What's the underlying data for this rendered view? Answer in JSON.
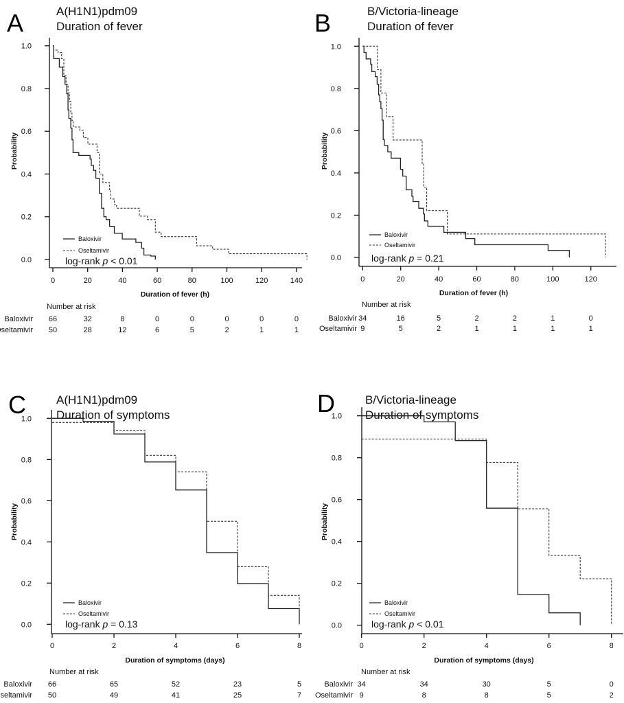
{
  "chart_data": [
    {
      "type": "line",
      "panel_letter": "A",
      "title": [
        "A(H1N1)pdm09",
        "Duration of fever"
      ],
      "xlabel": "Duration of fever (h)",
      "ylabel": "Probability",
      "xlim": [
        0,
        146
      ],
      "ylim": [
        0,
        1
      ],
      "xticks": [
        "0",
        "20",
        "40",
        "60",
        "80",
        "100",
        "120",
        "140"
      ],
      "xtick_values": [
        0,
        20,
        40,
        60,
        80,
        100,
        120,
        140
      ],
      "yticks": [
        "0.0",
        "0.2",
        "0.4",
        "0.6",
        "0.8",
        "1.0"
      ],
      "ytick_values": [
        0,
        0.2,
        0.4,
        0.6,
        0.8,
        1.0
      ],
      "legend": [
        "Baloxivir",
        "Oseltamivir"
      ],
      "legend_placement": "bottom-left",
      "logrank": {
        "prefix": "log-rank ",
        "p": "p",
        "suffix": " < 0.01"
      },
      "risk_table": {
        "title": "Number at risk",
        "rows": [
          {
            "label": "Baloxivir",
            "values": [
              "66",
              "32",
              "8",
              "0",
              "0",
              "0",
              "0",
              "0"
            ]
          },
          {
            "label": "Oseltamivir",
            "values": [
              "50",
              "28",
              "12",
              "6",
              "5",
              "2",
              "1",
              "1"
            ]
          }
        ]
      },
      "series": [
        {
          "name": "Baloxivir",
          "style": "solid",
          "steps": [
            [
              0,
              1
            ],
            [
              0.5,
              0.94
            ],
            [
              3.7,
              0.9
            ],
            [
              5.7,
              0.856
            ],
            [
              7,
              0.82
            ],
            [
              8,
              0.775
            ],
            [
              8.7,
              0.7
            ],
            [
              9.2,
              0.66
            ],
            [
              10.3,
              0.615
            ],
            [
              11,
              0.56
            ],
            [
              11.6,
              0.5
            ],
            [
              14.9,
              0.487
            ],
            [
              21.4,
              0.47
            ],
            [
              22.1,
              0.44
            ],
            [
              23.4,
              0.417
            ],
            [
              24.7,
              0.38
            ],
            [
              26.7,
              0.31
            ],
            [
              28,
              0.24
            ],
            [
              29.3,
              0.2
            ],
            [
              30.6,
              0.187
            ],
            [
              32.6,
              0.155
            ],
            [
              35.3,
              0.123
            ],
            [
              39.9,
              0.096
            ],
            [
              47.7,
              0.08
            ],
            [
              51,
              0.053
            ],
            [
              52.3,
              0.021
            ],
            [
              56.3,
              0.016
            ],
            [
              58.9,
              0
            ]
          ]
        },
        {
          "name": "Oseltamivir",
          "style": "dashed",
          "steps": [
            [
              0,
              1
            ],
            [
              0.5,
              0.98
            ],
            [
              3,
              0.968
            ],
            [
              5,
              0.94
            ],
            [
              6.3,
              0.86
            ],
            [
              7.6,
              0.82
            ],
            [
              8.7,
              0.78
            ],
            [
              9.6,
              0.74
            ],
            [
              10.3,
              0.685
            ],
            [
              11,
              0.65
            ],
            [
              11.8,
              0.62
            ],
            [
              15.5,
              0.604
            ],
            [
              17.5,
              0.57
            ],
            [
              20.1,
              0.54
            ],
            [
              25.4,
              0.5
            ],
            [
              26.7,
              0.4
            ],
            [
              28.7,
              0.36
            ],
            [
              32.6,
              0.326
            ],
            [
              33.3,
              0.283
            ],
            [
              35.3,
              0.257
            ],
            [
              36.6,
              0.24
            ],
            [
              49.7,
              0.203
            ],
            [
              54.3,
              0.187
            ],
            [
              58.9,
              0.128
            ],
            [
              62.2,
              0.107
            ],
            [
              82.6,
              0.064
            ],
            [
              91.8,
              0.048
            ],
            [
              101,
              0.027
            ],
            [
              146,
              0
            ]
          ]
        }
      ]
    },
    {
      "type": "line",
      "panel_letter": "B",
      "title": [
        "B/Victoria-lineage",
        "Duration of fever"
      ],
      "xlabel": "Duration of fever (h)",
      "ylabel": "Probability",
      "xlim": [
        0,
        128
      ],
      "ylim": [
        0,
        1
      ],
      "xticks": [
        "0",
        "20",
        "40",
        "60",
        "80",
        "100",
        "120"
      ],
      "xtick_values": [
        0,
        20,
        40,
        60,
        80,
        100,
        120
      ],
      "yticks": [
        "0.0",
        "0.2",
        "0.4",
        "0.6",
        "0.8",
        "1.0"
      ],
      "ytick_values": [
        0,
        0.2,
        0.4,
        0.6,
        0.8,
        1.0
      ],
      "legend": [
        "Baloxivir",
        "Oseltamivir"
      ],
      "legend_placement": "bottom-left",
      "logrank": {
        "prefix": "log-rank ",
        "p": "p",
        "suffix": " = 0.21"
      },
      "risk_table": {
        "title": "Number at risk",
        "rows": [
          {
            "label": "Baloxivir",
            "values": [
              "34",
              "16",
              "5",
              "2",
              "2",
              "1",
              "0"
            ]
          },
          {
            "label": "Oseltamivir",
            "values": [
              "9",
              "5",
              "2",
              "1",
              "1",
              "1",
              "1"
            ]
          }
        ]
      },
      "series": [
        {
          "name": "Baloxivir",
          "style": "solid",
          "steps": [
            [
              0,
              1
            ],
            [
              0.7,
              0.97
            ],
            [
              1.8,
              0.94
            ],
            [
              4.2,
              0.915
            ],
            [
              4.8,
              0.88
            ],
            [
              6.6,
              0.856
            ],
            [
              7.6,
              0.82
            ],
            [
              8.4,
              0.77
            ],
            [
              9,
              0.737
            ],
            [
              9.6,
              0.704
            ],
            [
              10.2,
              0.65
            ],
            [
              10.8,
              0.558
            ],
            [
              11.4,
              0.53
            ],
            [
              13.2,
              0.5
            ],
            [
              15,
              0.47
            ],
            [
              19.9,
              0.417
            ],
            [
              21.1,
              0.385
            ],
            [
              22.9,
              0.32
            ],
            [
              25.9,
              0.29
            ],
            [
              26.5,
              0.265
            ],
            [
              29.5,
              0.233
            ],
            [
              31.9,
              0.206
            ],
            [
              32.5,
              0.173
            ],
            [
              34.3,
              0.148
            ],
            [
              42.7,
              0.119
            ],
            [
              54.2,
              0.089
            ],
            [
              59,
              0.06
            ],
            [
              97.5,
              0.033
            ],
            [
              108.7,
              0
            ]
          ]
        },
        {
          "name": "Oseltamivir",
          "style": "dashed",
          "steps": [
            [
              0,
              1
            ],
            [
              7.8,
              0.889
            ],
            [
              9.6,
              0.778
            ],
            [
              12.6,
              0.667
            ],
            [
              16,
              0.556
            ],
            [
              31.3,
              0.444
            ],
            [
              32.1,
              0.333
            ],
            [
              33.7,
              0.222
            ],
            [
              44.5,
              0.111
            ],
            [
              127.6,
              0
            ]
          ]
        }
      ]
    },
    {
      "type": "line",
      "panel_letter": "C",
      "title": [
        "A(H1N1)pdm09",
        "Duration of symptoms"
      ],
      "xlabel": "Duration of symptoms (days)",
      "ylabel": "Probability",
      "xlim": [
        0,
        8
      ],
      "ylim": [
        0,
        1
      ],
      "xticks": [
        "0",
        "2",
        "4",
        "6",
        "8"
      ],
      "xtick_values": [
        0,
        2,
        4,
        6,
        8
      ],
      "yticks": [
        "0.0",
        "0.2",
        "0.4",
        "0.6",
        "0.8",
        "1.0"
      ],
      "ytick_values": [
        0,
        0.2,
        0.4,
        0.6,
        0.8,
        1.0
      ],
      "legend": [
        "Baloxivir",
        "Oseltamivir"
      ],
      "legend_placement": "bottom-left",
      "logrank": {
        "prefix": "log-rank ",
        "p": "p",
        "suffix": " = 0.13"
      },
      "risk_table": {
        "title": "Number at risk",
        "rows": [
          {
            "label": "Baloxivir",
            "values": [
              "66",
              "65",
              "52",
              "23",
              "5"
            ]
          },
          {
            "label": "Oseltamivir",
            "values": [
              "50",
              "49",
              "41",
              "25",
              "7"
            ]
          }
        ]
      },
      "series": [
        {
          "name": "Baloxivir",
          "style": "solid",
          "steps": [
            [
              0,
              1
            ],
            [
              1,
              0.985
            ],
            [
              2,
              0.924
            ],
            [
              3,
              0.788
            ],
            [
              4,
              0.652
            ],
            [
              5,
              0.348
            ],
            [
              6,
              0.197
            ],
            [
              7,
              0.076
            ],
            [
              8,
              0
            ]
          ]
        },
        {
          "name": "Oseltamivir",
          "style": "dashed",
          "steps": [
            [
              0,
              0.98
            ],
            [
              2,
              0.94
            ],
            [
              3,
              0.82
            ],
            [
              4,
              0.74
            ],
            [
              5,
              0.5
            ],
            [
              6,
              0.28
            ],
            [
              7,
              0.14
            ],
            [
              8,
              0
            ]
          ]
        }
      ]
    },
    {
      "type": "line",
      "panel_letter": "D",
      "title": [
        "B/Victoria-lineage",
        "Duration of symptoms"
      ],
      "xlabel": "Duration of symptoms (days)",
      "ylabel": "Probability",
      "xlim": [
        0,
        8
      ],
      "ylim": [
        0,
        1
      ],
      "xticks": [
        "0",
        "2",
        "4",
        "6",
        "8"
      ],
      "xtick_values": [
        0,
        2,
        4,
        6,
        8
      ],
      "yticks": [
        "0.0",
        "0.2",
        "0.4",
        "0.6",
        "0.8",
        "1.0"
      ],
      "ytick_values": [
        0,
        0.2,
        0.4,
        0.6,
        0.8,
        1.0
      ],
      "legend": [
        "Baloxivir",
        "Oseltamivir"
      ],
      "legend_placement": "bottom-left",
      "logrank": {
        "prefix": "log-rank ",
        "p": "p",
        "suffix": " < 0.01"
      },
      "risk_table": {
        "title": "Number  at risk",
        "rows": [
          {
            "label": "Baloxivir",
            "values": [
              "34",
              "34",
              "30",
              "5",
              "0"
            ]
          },
          {
            "label": "Oseltamivir",
            "values": [
              "9",
              "8",
              "8",
              "5",
              "2"
            ]
          }
        ]
      },
      "series": [
        {
          "name": "Baloxivir",
          "style": "solid",
          "steps": [
            [
              0,
              1
            ],
            [
              2,
              0.971
            ],
            [
              3,
              0.882
            ],
            [
              4,
              0.559
            ],
            [
              5,
              0.147
            ],
            [
              6,
              0.059
            ],
            [
              7,
              0
            ]
          ]
        },
        {
          "name": "Oseltamivir",
          "style": "dashed",
          "steps": [
            [
              0,
              0.889
            ],
            [
              4,
              0.778
            ],
            [
              5,
              0.556
            ],
            [
              6,
              0.333
            ],
            [
              7,
              0.222
            ],
            [
              8,
              0
            ]
          ]
        }
      ]
    }
  ]
}
